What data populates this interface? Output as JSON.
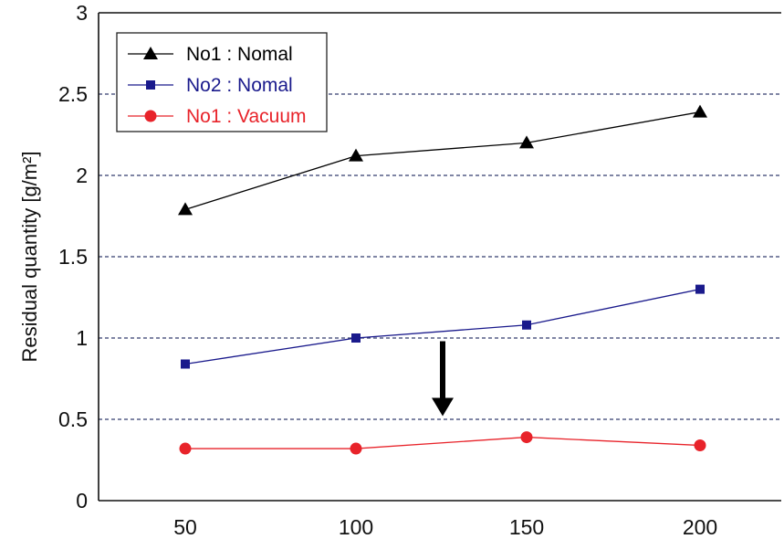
{
  "chart_data": {
    "type": "line",
    "title": "",
    "xlabel": "",
    "ylabel": "Residual quantity [g/m²]",
    "categories": [
      "50",
      "100",
      "150",
      "200"
    ],
    "x": [
      50,
      100,
      150,
      200
    ],
    "y_ticks": [
      "0",
      "0.5",
      "1",
      "1.5",
      "2",
      "2.5",
      "3"
    ],
    "ylim": [
      0,
      3
    ],
    "grid": "horizontal dashed",
    "legend_position": "top-left",
    "series": [
      {
        "name": "No1 : Nomal",
        "values": [
          1.79,
          2.12,
          2.2,
          2.39
        ],
        "color": "#000000",
        "marker": "triangle"
      },
      {
        "name": "No2 : Nomal",
        "values": [
          0.84,
          1.0,
          1.08,
          1.3
        ],
        "color": "#1a1a8c",
        "marker": "square"
      },
      {
        "name": "No1 : Vacuum",
        "values": [
          0.32,
          0.32,
          0.39,
          0.34
        ],
        "color": "#e8232a",
        "marker": "circle"
      }
    ],
    "annotation": {
      "type": "arrow",
      "direction": "down",
      "x": 125,
      "y_from": 0.98,
      "y_to": 0.52,
      "color": "#000000"
    }
  }
}
